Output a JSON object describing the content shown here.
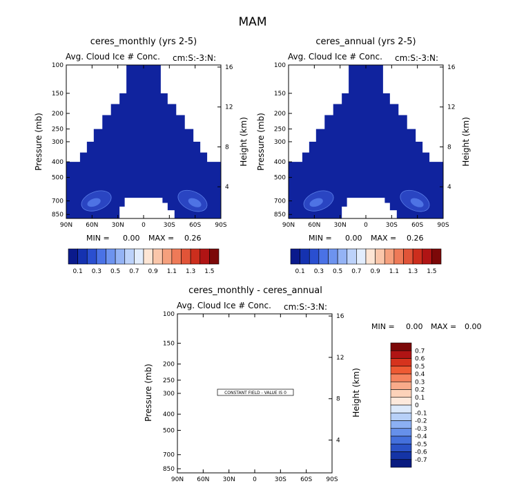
{
  "figure_title": "MAM",
  "panels": [
    {
      "title": "ceres_monthly (yrs 2-5)",
      "subtitle": "Avg. Cloud Ice # Conc.",
      "units": "cm:S:-3:N:",
      "min_label": "MIN =",
      "min_value": "0.00",
      "max_label": "MAX =",
      "max_value": "0.26"
    },
    {
      "title": "ceres_annual (yrs 2-5)",
      "subtitle": "Avg. Cloud Ice # Conc.",
      "units": "cm:S:-3:N:",
      "min_label": "MIN =",
      "min_value": "0.00",
      "max_label": "MAX =",
      "max_value": "0.26"
    },
    {
      "title": "ceres_monthly - ceres_annual",
      "subtitle": "Avg. Cloud Ice # Conc.",
      "units": "cm:S:-3:N:",
      "min_label": "MIN =",
      "min_value": "0.00",
      "max_label": "MAX =",
      "max_value": "0.00",
      "constant_field_text": "CONSTANT FIELD - VALUE IS 0"
    }
  ],
  "colors": {
    "field_fill": "#10239e",
    "max_shade": "#2a45c2",
    "max_core": "#4e73e4",
    "contour_line": "#5b7fe8",
    "background": "#ffffff"
  },
  "colorbar_top": {
    "colors": [
      "#0a1a8c",
      "#1532b0",
      "#2a4fd0",
      "#4a72e6",
      "#6d93ef",
      "#94b3f5",
      "#bcd2fa",
      "#e2edfd",
      "#fde5d4",
      "#fac6aa",
      "#f5a07d",
      "#ee7a58",
      "#e15438",
      "#cc2e1d",
      "#b01414",
      "#7c0808"
    ],
    "labels": [
      "0.1",
      "0.3",
      "0.5",
      "0.7",
      "0.9",
      "1.1",
      "1.3",
      "1.5"
    ]
  },
  "colorbar_diff": {
    "colors": [
      "#7c0808",
      "#b01414",
      "#d6331d",
      "#ee5a33",
      "#f5835e",
      "#f9ab8a",
      "#fcd2b9",
      "#fde9dc",
      "#dce9fb",
      "#b7d0f8",
      "#8cb0f3",
      "#6690ea",
      "#4470dc",
      "#2a52c6",
      "#1434a6",
      "#091b80"
    ],
    "labels": [
      "0.7",
      "0.6",
      "0.5",
      "0.4",
      "0.3",
      "0.2",
      "0.1",
      "0",
      "-0.1",
      "-0.2",
      "-0.3",
      "-0.4",
      "-0.5",
      "-0.6",
      "-0.7"
    ]
  },
  "chart_data": [
    {
      "type": "heatmap",
      "title": "ceres_monthly (yrs 2-5)",
      "subtitle": "Avg. Cloud Ice # Conc.",
      "units": "cm:S:-3:N:",
      "xlabel": "",
      "ylabel": "Pressure (mb)",
      "y2label": "Height (km)",
      "x_ticks": [
        "90N",
        "60N",
        "30N",
        "0",
        "30S",
        "60S",
        "90S"
      ],
      "y_ticks": [
        "100",
        "150",
        "200",
        "250",
        "300",
        "400",
        "500",
        "700",
        "850"
      ],
      "y2_ticks": [
        "16",
        "12",
        "8",
        "4"
      ],
      "min": 0.0,
      "max": 0.26
    },
    {
      "type": "heatmap",
      "title": "ceres_annual (yrs 2-5)",
      "subtitle": "Avg. Cloud Ice # Conc.",
      "units": "cm:S:-3:N:",
      "xlabel": "",
      "ylabel": "Pressure (mb)",
      "y2label": "Height (km)",
      "x_ticks": [
        "90N",
        "60N",
        "30N",
        "0",
        "30S",
        "60S",
        "90S"
      ],
      "y_ticks": [
        "100",
        "150",
        "200",
        "250",
        "300",
        "400",
        "500",
        "700",
        "850"
      ],
      "y2_ticks": [
        "16",
        "12",
        "8",
        "4"
      ],
      "min": 0.0,
      "max": 0.26
    },
    {
      "type": "heatmap",
      "title": "ceres_monthly - ceres_annual",
      "subtitle": "Avg. Cloud Ice # Conc.",
      "units": "cm:S:-3:N:",
      "xlabel": "",
      "ylabel": "Pressure (mb)",
      "y2label": "Height (km)",
      "x_ticks": [
        "90N",
        "60N",
        "30N",
        "0",
        "30S",
        "60S",
        "90S"
      ],
      "y_ticks": [
        "100",
        "150",
        "200",
        "250",
        "300",
        "400",
        "500",
        "700",
        "850"
      ],
      "y2_ticks": [
        "16",
        "12",
        "8",
        "4"
      ],
      "min": 0.0,
      "max": 0.0,
      "annotation": "CONSTANT FIELD - VALUE IS 0"
    }
  ]
}
